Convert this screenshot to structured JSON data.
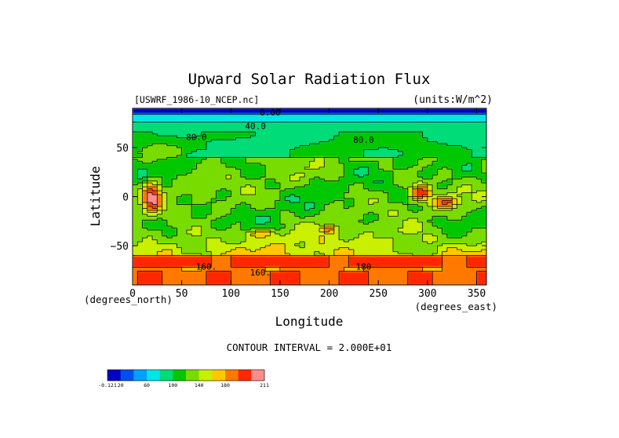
{
  "chart_data": {
    "type": "contour",
    "title": "Upward Solar Radiation Flux",
    "file_label": "[USWRF_1986-10_NCEP.nc]",
    "units_label": "(units:W/m^2)",
    "xlabel": "Longitude",
    "ylabel": "Latitude",
    "x_units_label": "(degrees_east)",
    "y_units_label": "(degrees_north)",
    "xlim": [
      0,
      360
    ],
    "ylim": [
      -90,
      90
    ],
    "xticks": [
      0,
      50,
      100,
      150,
      200,
      250,
      300,
      350
    ],
    "yticks": [
      -50,
      0,
      50
    ],
    "contour_interval_text": "CONTOUR INTERVAL = 2.000E+01",
    "contour_labels": [
      {
        "text": "0.00",
        "lon": 140,
        "lat": 86
      },
      {
        "text": "40.0",
        "lon": 125,
        "lat": 72
      },
      {
        "text": "80.0",
        "lon": 65,
        "lat": 61
      },
      {
        "text": "80.0",
        "lon": 235,
        "lat": 58
      },
      {
        "text": "160.",
        "lon": 75,
        "lat": -71
      },
      {
        "text": "160.",
        "lon": 130,
        "lat": -77
      },
      {
        "text": "180",
        "lon": 235,
        "lat": -71
      }
    ],
    "colorbar": {
      "colors": [
        "#0000c8",
        "#0050f0",
        "#00a0ff",
        "#00e6e6",
        "#00dc78",
        "#00c800",
        "#78dc00",
        "#c8f000",
        "#ffc800",
        "#ff7800",
        "#ff2800",
        "#ff8c8c"
      ],
      "tick_labels": [
        "-0.121",
        "20",
        "60",
        "100",
        "140",
        "180",
        "211"
      ],
      "tick_index": [
        0,
        1,
        3,
        5,
        7,
        9,
        12
      ]
    }
  }
}
